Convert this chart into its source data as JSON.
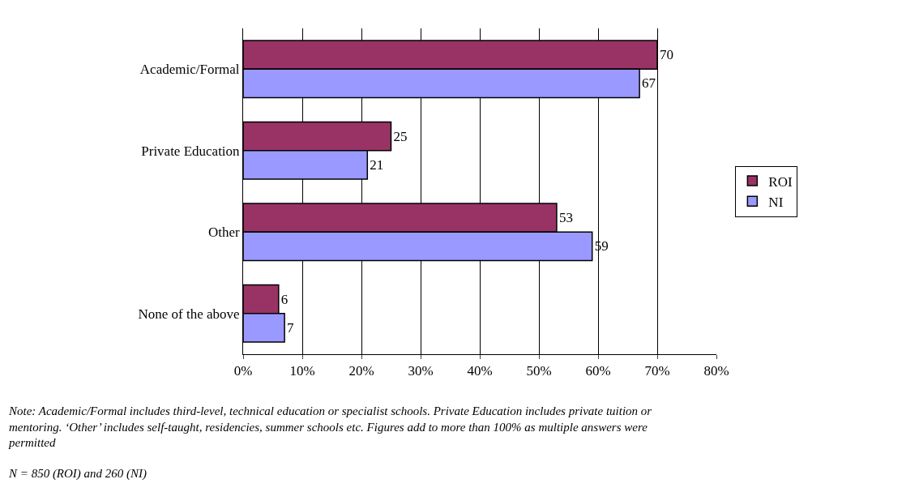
{
  "chart_data": {
    "type": "bar",
    "orientation": "horizontal",
    "categories": [
      "Academic/Formal",
      "Private Education",
      "Other",
      "None of the above"
    ],
    "series": [
      {
        "name": "ROI",
        "color": "#993366",
        "values": [
          70,
          25,
          53,
          6
        ]
      },
      {
        "name": "NI",
        "color": "#9999ff",
        "values": [
          67,
          21,
          59,
          7
        ]
      }
    ],
    "xlim": [
      0,
      80
    ],
    "xticks": [
      {
        "value": 0,
        "label": "0%"
      },
      {
        "value": 10,
        "label": "10%"
      },
      {
        "value": 20,
        "label": "20%"
      },
      {
        "value": 30,
        "label": "30%"
      },
      {
        "value": 40,
        "label": "40%"
      },
      {
        "value": 50,
        "label": "50%"
      },
      {
        "value": 60,
        "label": "60%"
      },
      {
        "value": 70,
        "label": "70%"
      },
      {
        "value": 80,
        "label": "80%"
      }
    ],
    "grid": "x",
    "legend": "right",
    "data_labels": true,
    "annotations": [
      "Note: Academic/Formal includes third-level, technical education or specialist schools. Private Education includes private tuition or mentoring. ‘Other’ includes self-taught, residencies, summer schools etc. Figures add to more than 100% as multiple answers were permitted",
      "N = 850 (ROI) and 260 (NI)"
    ]
  }
}
